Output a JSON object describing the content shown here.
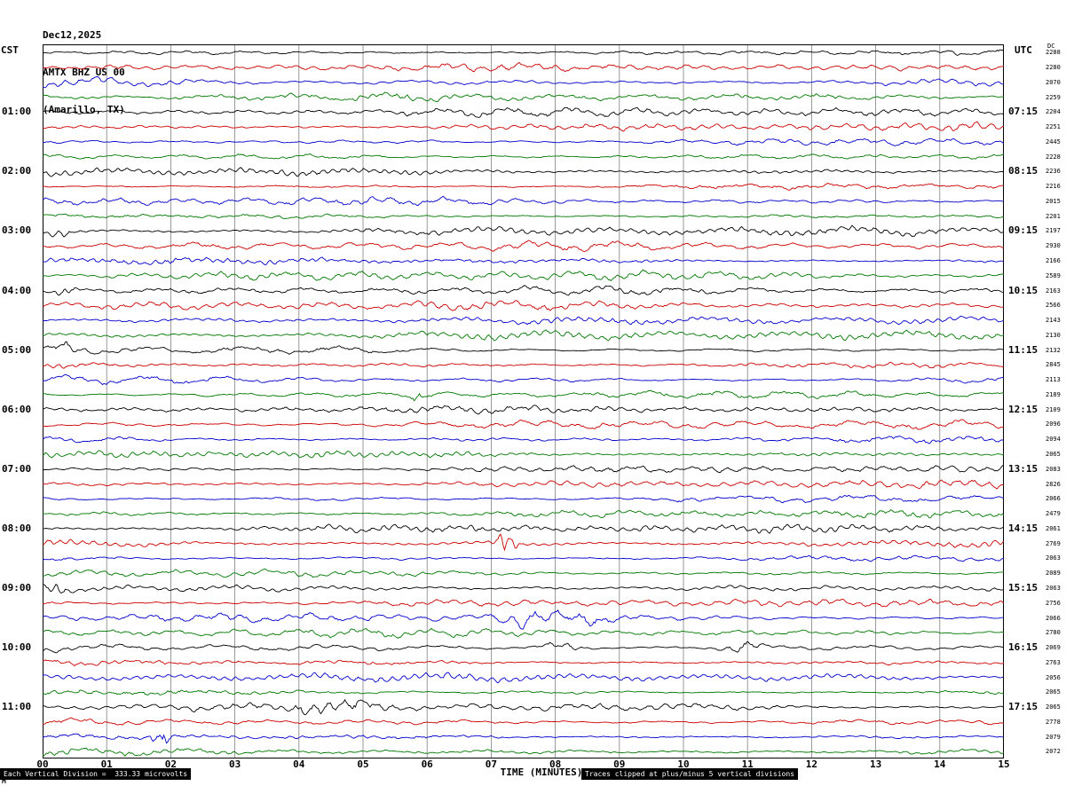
{
  "header": {
    "date": "Dec12,2025",
    "station": "AMTX BHZ US 00",
    "location": "(Amarillo, TX)"
  },
  "axes": {
    "left_tz": "CST",
    "right_tz": "UTC",
    "dc_header": "DC",
    "xlabel": "TIME (MINUTES)",
    "x_ticks": [
      "00",
      "01",
      "02",
      "03",
      "04",
      "05",
      "06",
      "07",
      "08",
      "09",
      "10",
      "11",
      "12",
      "13",
      "14",
      "15"
    ]
  },
  "footer": {
    "scale_note": "Each Vertical Division =  333.33 microvolts",
    "clip_note": "Traces clipped at plus/minus 5 vertical divisions",
    "logo": "M"
  },
  "chart_data": {
    "type": "line",
    "title": "AMTX BHZ US 00 (Amarillo, TX) Dec12,2025",
    "description": "Helicorder (webicorder) display: 48 rows of continuous ambient seismic noise, 15 minutes per row, colors cycling black/red/blue/green, vertical gridlines each minute",
    "minutes_per_row": 15,
    "x_range": [
      0,
      15
    ],
    "rows_count": 48,
    "colors": [
      "#000000",
      "#cc0000",
      "#0000cc",
      "#007700"
    ],
    "grid_color": "#808080",
    "left_labels": [
      {
        "row": 4,
        "label": "01:00"
      },
      {
        "row": 8,
        "label": "02:00"
      },
      {
        "row": 12,
        "label": "03:00"
      },
      {
        "row": 16,
        "label": "04:00"
      },
      {
        "row": 20,
        "label": "05:00"
      },
      {
        "row": 24,
        "label": "06:00"
      },
      {
        "row": 28,
        "label": "07:00"
      },
      {
        "row": 32,
        "label": "08:00"
      },
      {
        "row": 36,
        "label": "09:00"
      },
      {
        "row": 40,
        "label": "10:00"
      },
      {
        "row": 44,
        "label": "11:00"
      }
    ],
    "right_labels": [
      {
        "row": 4,
        "label": "07:15"
      },
      {
        "row": 8,
        "label": "08:15"
      },
      {
        "row": 12,
        "label": "09:15"
      },
      {
        "row": 16,
        "label": "10:15"
      },
      {
        "row": 20,
        "label": "11:15"
      },
      {
        "row": 24,
        "label": "12:15"
      },
      {
        "row": 28,
        "label": "13:15"
      },
      {
        "row": 32,
        "label": "14:15"
      },
      {
        "row": 36,
        "label": "15:15"
      },
      {
        "row": 40,
        "label": "16:15"
      },
      {
        "row": 44,
        "label": "17:15"
      }
    ],
    "dc_values": [
      2288,
      2280,
      2070,
      2259,
      2204,
      2251,
      2445,
      2228,
      2236,
      2216,
      2015,
      2201,
      2197,
      2930,
      2166,
      2589,
      2163,
      2566,
      2143,
      2130,
      2132,
      2845,
      2113,
      2189,
      2109,
      2096,
      2094,
      2065,
      2083,
      2826,
      2066,
      2479,
      2061,
      2769,
      2063,
      2089,
      2063,
      2756,
      2066,
      2780,
      2069,
      2763,
      2056,
      2065,
      2065,
      2778,
      2079,
      2072
    ],
    "events": [
      {
        "row": 12,
        "minute": 0.25,
        "width": 0.2,
        "amp": 1.6
      },
      {
        "row": 16,
        "minute": 0.35,
        "width": 0.2,
        "amp": 1.7
      },
      {
        "row": 20,
        "minute": 0.4,
        "width": 0.25,
        "amp": 1.9
      },
      {
        "row": 23,
        "minute": 5.9,
        "width": 0.2,
        "amp": 2.6
      },
      {
        "row": 33,
        "minute": 7.25,
        "width": 0.15,
        "amp": 4.5
      },
      {
        "row": 36,
        "minute": 0.25,
        "width": 0.18,
        "amp": 2.0
      },
      {
        "row": 38,
        "minute": 7.6,
        "width": 0.5,
        "amp": 2.4
      },
      {
        "row": 38,
        "minute": 8.5,
        "width": 0.35,
        "amp": 1.8
      },
      {
        "row": 40,
        "minute": 8.1,
        "width": 0.3,
        "amp": 1.7
      },
      {
        "row": 40,
        "minute": 10.9,
        "width": 0.3,
        "amp": 1.9
      },
      {
        "row": 44,
        "minute": 4.4,
        "width": 0.5,
        "amp": 1.7
      },
      {
        "row": 44,
        "minute": 5.0,
        "width": 0.25,
        "amp": 2.0
      },
      {
        "row": 46,
        "minute": 1.85,
        "width": 0.12,
        "amp": 6.0
      }
    ]
  }
}
